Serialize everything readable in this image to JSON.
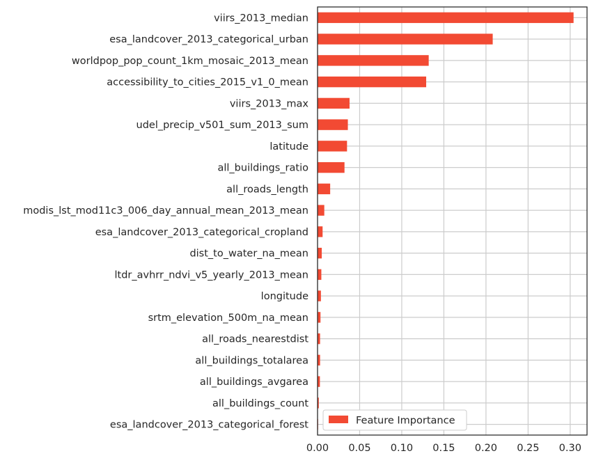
{
  "chart_data": {
    "type": "bar",
    "orientation": "horizontal",
    "title": "",
    "xlabel": "",
    "ylabel": "",
    "xlim": [
      0,
      0.32
    ],
    "x_ticks": [
      0.0,
      0.05,
      0.1,
      0.15,
      0.2,
      0.25,
      0.3
    ],
    "x_tick_labels": [
      "0.00",
      "0.05",
      "0.10",
      "0.15",
      "0.20",
      "0.25",
      "0.30"
    ],
    "grid": true,
    "legend": {
      "placement": "lower-left",
      "entries": [
        "Feature Importance"
      ]
    },
    "bar_color": "#f24a33",
    "categories": [
      "viirs_2013_median",
      "esa_landcover_2013_categorical_urban",
      "worldpop_pop_count_1km_mosaic_2013_mean",
      "accessibility_to_cities_2015_v1_0_mean",
      "viirs_2013_max",
      "udel_precip_v501_sum_2013_sum",
      "latitude",
      "all_buildings_ratio",
      "all_roads_length",
      "modis_lst_mod11c3_006_day_annual_mean_2013_mean",
      "esa_landcover_2013_categorical_cropland",
      "dist_to_water_na_mean",
      "ltdr_avhrr_ndvi_v5_yearly_2013_mean",
      "longitude",
      "srtm_elevation_500m_na_mean",
      "all_roads_nearestdist",
      "all_buildings_totalarea",
      "all_buildings_avgarea",
      "all_buildings_count",
      "esa_landcover_2013_categorical_forest"
    ],
    "series": [
      {
        "name": "Feature Importance",
        "values": [
          0.304,
          0.208,
          0.132,
          0.129,
          0.038,
          0.036,
          0.035,
          0.032,
          0.015,
          0.008,
          0.006,
          0.005,
          0.0045,
          0.004,
          0.0035,
          0.003,
          0.003,
          0.0028,
          0.0015,
          0.0005
        ]
      }
    ]
  }
}
